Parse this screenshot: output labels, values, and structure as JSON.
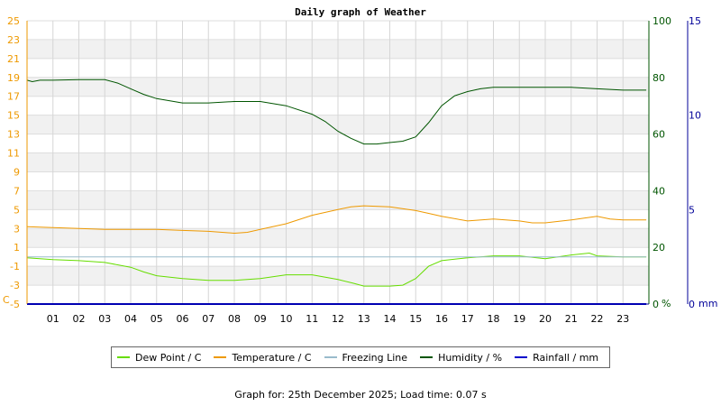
{
  "chart_data": {
    "type": "line",
    "title": "Daily graph of Weather",
    "x_ticks": [
      "01",
      "02",
      "03",
      "04",
      "05",
      "06",
      "07",
      "08",
      "09",
      "10",
      "11",
      "12",
      "13",
      "14",
      "15",
      "16",
      "17",
      "18",
      "19",
      "20",
      "21",
      "22",
      "23"
    ],
    "grid": true,
    "axes": {
      "left": {
        "unit": "C",
        "ticks": [
          25,
          23,
          21,
          19,
          17,
          15,
          13,
          11,
          9,
          7,
          5,
          3,
          1,
          -1,
          -3,
          -5
        ],
        "range": [
          -5,
          25
        ]
      },
      "right_pct": {
        "unit": "%",
        "ticks": [
          100,
          80,
          60,
          40,
          20,
          0
        ],
        "range": [
          0,
          100
        ]
      },
      "right_mm": {
        "unit": "mm",
        "ticks": [
          15,
          10,
          5,
          0
        ],
        "range": [
          0,
          15
        ]
      }
    },
    "series": [
      {
        "name": "Dew Point / C",
        "color": "#66dd00",
        "axis": "left",
        "points": [
          [
            0,
            -0.1
          ],
          [
            1,
            -0.3
          ],
          [
            2,
            -0.4
          ],
          [
            3,
            -0.6
          ],
          [
            4,
            -1.1
          ],
          [
            4.5,
            -1.6
          ],
          [
            5,
            -2.0
          ],
          [
            6,
            -2.3
          ],
          [
            7,
            -2.5
          ],
          [
            8,
            -2.5
          ],
          [
            9,
            -2.3
          ],
          [
            10,
            -1.9
          ],
          [
            11,
            -1.9
          ],
          [
            12,
            -2.4
          ],
          [
            12.6,
            -2.8
          ],
          [
            13,
            -3.1
          ],
          [
            14,
            -3.1
          ],
          [
            14.5,
            -3.0
          ],
          [
            15,
            -2.3
          ],
          [
            15.5,
            -1.0
          ],
          [
            16,
            -0.4
          ],
          [
            17,
            -0.1
          ],
          [
            18,
            0.1
          ],
          [
            19,
            0.1
          ],
          [
            20,
            -0.2
          ],
          [
            21,
            0.2
          ],
          [
            21.7,
            0.4
          ],
          [
            22,
            0.1
          ],
          [
            23,
            0.0
          ],
          [
            23.9,
            0.0
          ]
        ]
      },
      {
        "name": "Temperature / C",
        "color": "#ee9900",
        "axis": "left",
        "points": [
          [
            0,
            3.2
          ],
          [
            1,
            3.1
          ],
          [
            2,
            3.0
          ],
          [
            3,
            2.9
          ],
          [
            4,
            2.9
          ],
          [
            5,
            2.9
          ],
          [
            6,
            2.8
          ],
          [
            7,
            2.7
          ],
          [
            8,
            2.5
          ],
          [
            8.5,
            2.6
          ],
          [
            9,
            2.9
          ],
          [
            10,
            3.5
          ],
          [
            11,
            4.4
          ],
          [
            12,
            5.0
          ],
          [
            12.5,
            5.3
          ],
          [
            13,
            5.4
          ],
          [
            14,
            5.3
          ],
          [
            15,
            4.9
          ],
          [
            15.5,
            4.6
          ],
          [
            16,
            4.3
          ],
          [
            17,
            3.8
          ],
          [
            18,
            4.0
          ],
          [
            19,
            3.8
          ],
          [
            19.5,
            3.6
          ],
          [
            20,
            3.6
          ],
          [
            21,
            3.9
          ],
          [
            21.5,
            4.1
          ],
          [
            22,
            4.3
          ],
          [
            22.5,
            4.0
          ],
          [
            23,
            3.9
          ],
          [
            23.9,
            3.9
          ]
        ]
      },
      {
        "name": "Freezing Line",
        "color": "#99bbcc",
        "axis": "left",
        "points": [
          [
            0,
            0
          ],
          [
            23.9,
            0
          ]
        ]
      },
      {
        "name": "Humidity / %",
        "color": "#005500",
        "axis": "right_pct",
        "points": [
          [
            0,
            79
          ],
          [
            0.2,
            78.5
          ],
          [
            0.5,
            79
          ],
          [
            1,
            79
          ],
          [
            2,
            79.2
          ],
          [
            3,
            79.2
          ],
          [
            3.5,
            78
          ],
          [
            4,
            76
          ],
          [
            4.5,
            74
          ],
          [
            5,
            72.5
          ],
          [
            6,
            71
          ],
          [
            7,
            71
          ],
          [
            8,
            71.5
          ],
          [
            9,
            71.5
          ],
          [
            10,
            70
          ],
          [
            11,
            67
          ],
          [
            11.5,
            64.5
          ],
          [
            12,
            61
          ],
          [
            12.5,
            58.5
          ],
          [
            13,
            56.5
          ],
          [
            13.5,
            56.5
          ],
          [
            14,
            57
          ],
          [
            14.5,
            57.5
          ],
          [
            15,
            59
          ],
          [
            15.5,
            64
          ],
          [
            16,
            70
          ],
          [
            16.5,
            73.5
          ],
          [
            17,
            75
          ],
          [
            17.5,
            76
          ],
          [
            18,
            76.5
          ],
          [
            19,
            76.5
          ],
          [
            20,
            76.5
          ],
          [
            21,
            76.5
          ],
          [
            22,
            76
          ],
          [
            23,
            75.5
          ],
          [
            23.9,
            75.5
          ]
        ]
      },
      {
        "name": "Rainfall / mm",
        "color": "#0000cc",
        "axis": "right_mm",
        "points": [
          [
            0,
            0
          ],
          [
            23.9,
            0
          ]
        ]
      }
    ]
  },
  "legend": [
    {
      "label": "Dew Point / C",
      "color": "#66dd00"
    },
    {
      "label": "Temperature / C",
      "color": "#ee9900"
    },
    {
      "label": "Freezing Line",
      "color": "#99bbcc"
    },
    {
      "label": "Humidity / %",
      "color": "#005500"
    },
    {
      "label": "Rainfall / mm",
      "color": "#0000cc"
    }
  ],
  "footer": "Graph for: 25th December 2025; Load time: 0.07 s",
  "colors": {
    "axis_left": "#ee9900",
    "axis_pct": "#005500",
    "axis_mm": "#000099"
  }
}
